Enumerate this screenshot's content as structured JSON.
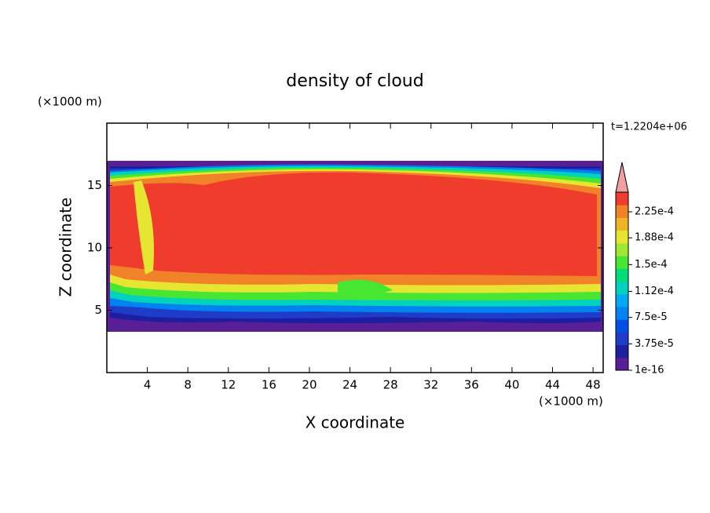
{
  "chart_data": {
    "type": "contour",
    "title": "density of cloud",
    "x_label": "X coordinate",
    "y_label": "Z coordinate",
    "x_unit": "(×1000 m)",
    "y_unit": "(×1000 m)",
    "annotation": "t=1.2204e+06",
    "xlim": [
      0,
      49
    ],
    "ylim": [
      0,
      20
    ],
    "xticks": [
      4,
      8,
      12,
      16,
      20,
      24,
      28,
      32,
      36,
      40,
      44,
      48
    ],
    "yticks": [
      5,
      10,
      15
    ],
    "levels": [
      {
        "value": 1e-16,
        "label": "1e-16"
      },
      {
        "value": 3.75e-05,
        "label": "3.75e-5"
      },
      {
        "value": 7.5e-05,
        "label": "7.5e-5"
      },
      {
        "value": 0.000112,
        "label": "1.12e-4"
      },
      {
        "value": 0.00015,
        "label": "1.5e-4"
      },
      {
        "value": 0.000188,
        "label": "1.88e-4"
      },
      {
        "value": 0.000225,
        "label": "2.25e-4"
      }
    ],
    "colors": [
      "#5a1e96",
      "#1e1ea0",
      "#1e3cc8",
      "#0050e6",
      "#0082f0",
      "#00aaf0",
      "#00d2be",
      "#00dc78",
      "#46e632",
      "#a0e632",
      "#e6e632",
      "#f0b428",
      "#f08228",
      "#f03c2d"
    ],
    "over_color": "#f0a0a0"
  }
}
